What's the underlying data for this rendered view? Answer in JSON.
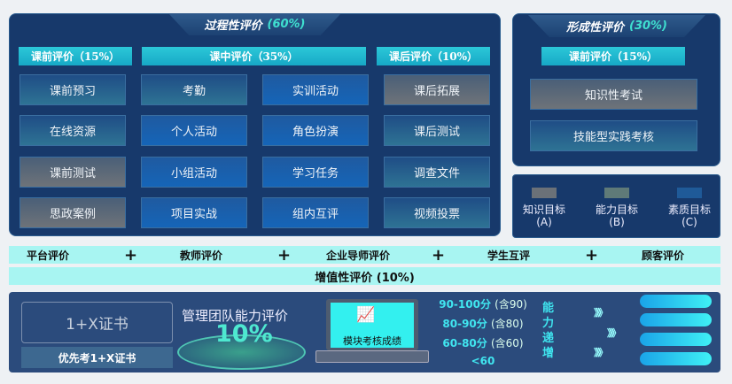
{
  "process": {
    "title": "过程性评价",
    "percent": "(60%)",
    "headers": [
      "课前评价（15%）",
      "课中评价（35%）",
      "课后评价（10%）"
    ],
    "columns": [
      [
        {
          "label": "课前预习",
          "style": "teal"
        },
        {
          "label": "在线资源",
          "style": "teal"
        },
        {
          "label": "课前测试",
          "style": "gray"
        },
        {
          "label": "思政案例",
          "style": "gray"
        }
      ],
      [
        {
          "label": "考勤",
          "style": "teal"
        },
        {
          "label": "个人活动",
          "style": "blue"
        },
        {
          "label": "小组活动",
          "style": "blue"
        },
        {
          "label": "项目实战",
          "style": "blue"
        }
      ],
      [
        {
          "label": "实训活动",
          "style": "blue"
        },
        {
          "label": "角色扮演",
          "style": "blue"
        },
        {
          "label": "学习任务",
          "style": "blue"
        },
        {
          "label": "组内互评",
          "style": "blue"
        }
      ],
      [
        {
          "label": "课后拓展",
          "style": "gray"
        },
        {
          "label": "课后测试",
          "style": "teal"
        },
        {
          "label": "调查文件",
          "style": "teal"
        },
        {
          "label": "视频投票",
          "style": "teal"
        }
      ]
    ]
  },
  "formative": {
    "title": "形成性评价",
    "percent": "(30%)",
    "header": "课前评价（15%）",
    "items": [
      {
        "label": "知识性考试",
        "style": "gray"
      },
      {
        "label": "技能型实践考核",
        "style": "teal"
      }
    ]
  },
  "legend": [
    {
      "label": "知识目标",
      "code": "(A)",
      "color": "#6b7178"
    },
    {
      "label": "能力目标",
      "code": "(B)",
      "color": "#5f7a78"
    },
    {
      "label": "素质目标",
      "code": "(C)",
      "color": "#1f5a98"
    }
  ],
  "evaluators": [
    "平台评价",
    "教师评价",
    "企业导师评价",
    "学生互评",
    "顾客评价"
  ],
  "plus": "+",
  "value_added": {
    "title": "增值性评价 (10%)"
  },
  "bottom": {
    "cert": "1+X证书",
    "cert_label": "优先考1+X证书",
    "team_title": "管理团队能力评价",
    "team_percent": "10%",
    "laptop_label": "模块考核成绩",
    "scores": [
      {
        "range": "90-100分",
        "note": "(含90)"
      },
      {
        "range": "80-90分",
        "note": "(含80)"
      },
      {
        "range": "60-80分",
        "note": "(含60)"
      },
      {
        "range": "<60",
        "note": ""
      }
    ],
    "increase": [
      "能",
      "力",
      "递",
      "增"
    ],
    "arrows": "》》》"
  }
}
